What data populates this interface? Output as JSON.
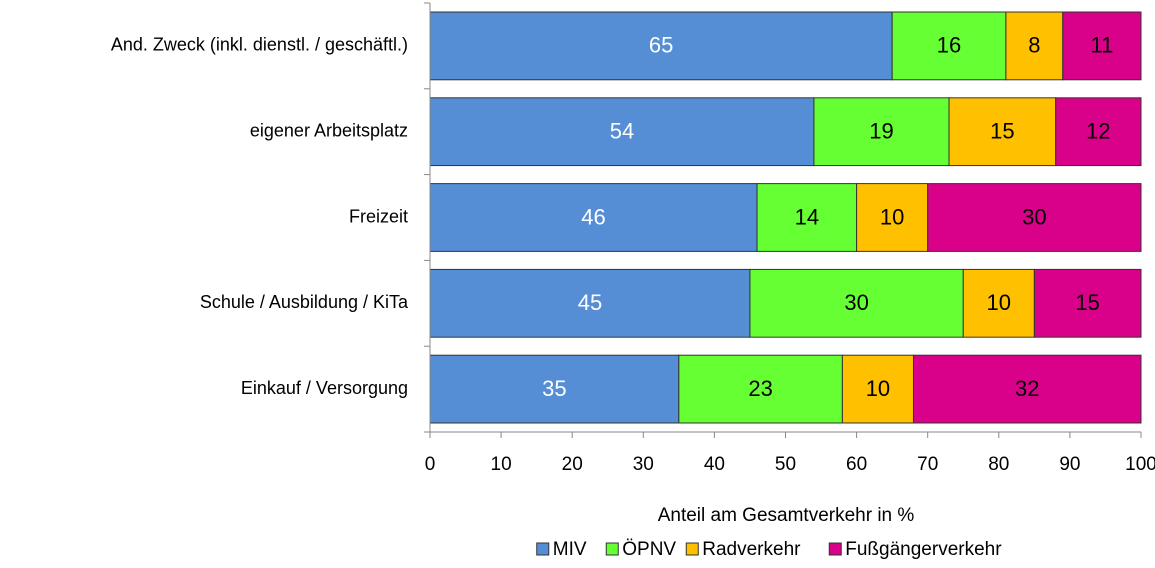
{
  "chart_data": {
    "type": "stacked-barh",
    "categories": [
      "And. Zweck (inkl. dienstl. / geschäftl.)",
      "eigener Arbeitsplatz",
      "Freizeit",
      "Schule / Ausbildung / KiTa",
      "Einkauf / Versorgung"
    ],
    "series": [
      {
        "name": "MIV",
        "color": "#558ed5",
        "values": [
          65,
          54,
          46,
          45,
          35
        ]
      },
      {
        "name": "ÖPNV",
        "color": "#66ff33",
        "values": [
          16,
          19,
          14,
          30,
          23
        ]
      },
      {
        "name": "Radverkehr",
        "color": "#ffc000",
        "values": [
          8,
          15,
          10,
          10,
          10
        ]
      },
      {
        "name": "Fußgängerverkehr",
        "color": "#d9008a",
        "values": [
          11,
          12,
          30,
          15,
          32
        ]
      }
    ],
    "xlabel": "Anteil am Gesamtverkehr in %",
    "xlim": [
      0,
      100
    ],
    "xticks": [
      0,
      10,
      20,
      30,
      40,
      50,
      60,
      70,
      80,
      90,
      100
    ],
    "grid": false,
    "legend": "bottom"
  }
}
